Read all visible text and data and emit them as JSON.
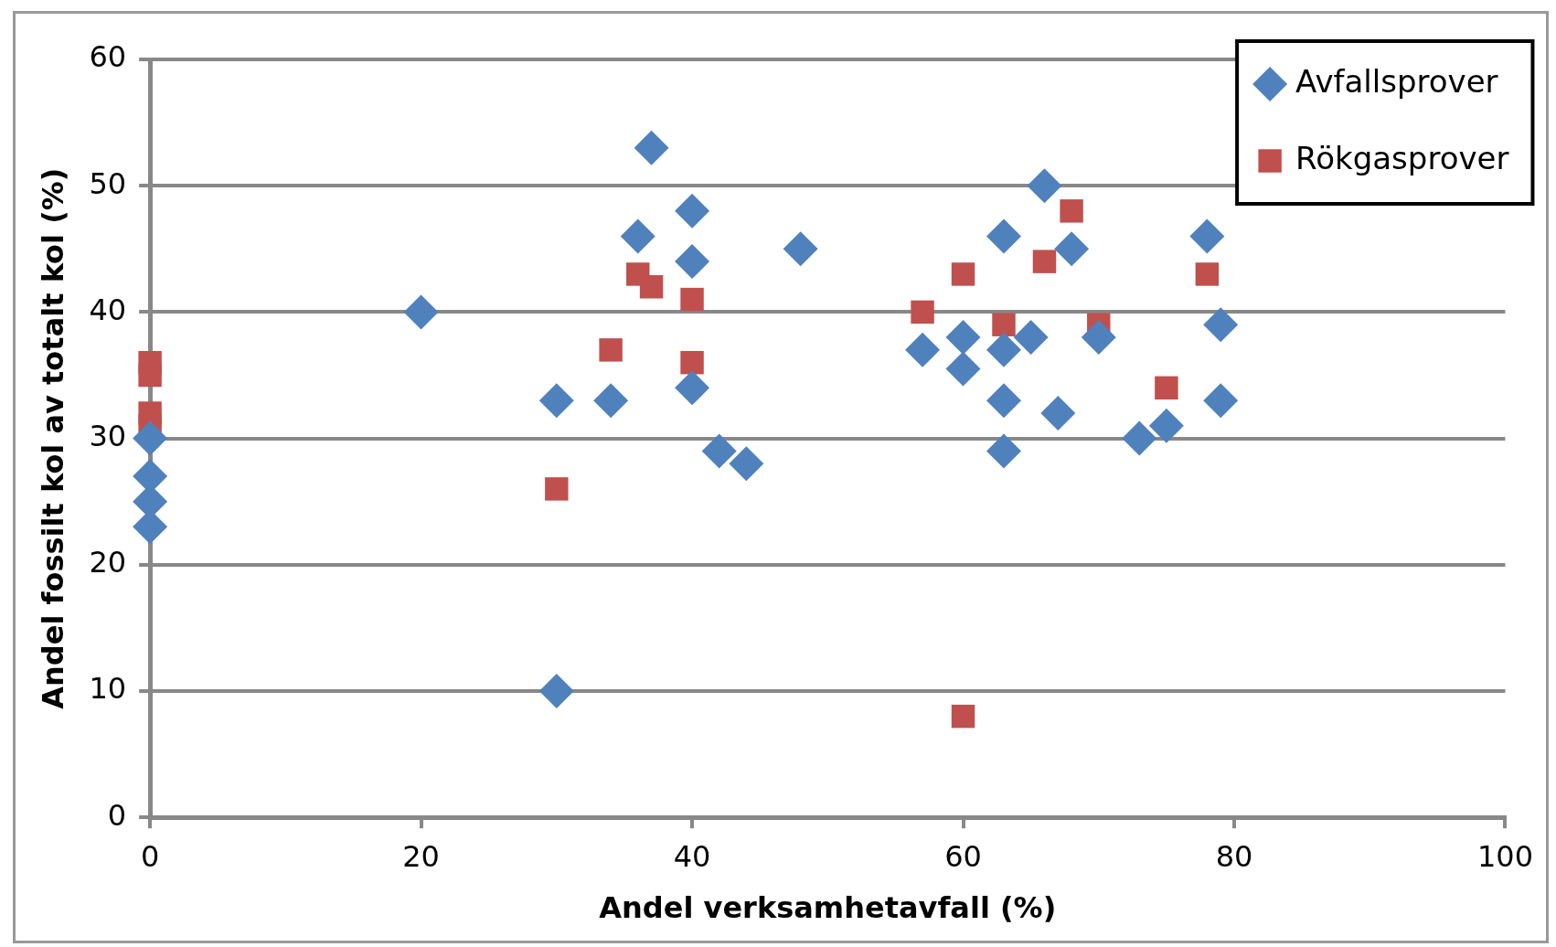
{
  "chart_data": {
    "type": "scatter",
    "xlabel": "Andel verksamhetavfall (%)",
    "ylabel": "Andel fossilt kol av totalt kol (%)",
    "xlim": [
      0,
      100
    ],
    "xticks": [
      0,
      20,
      40,
      60,
      80,
      100
    ],
    "ylim": [
      0,
      60
    ],
    "yticks": [
      0,
      10,
      20,
      30,
      40,
      50,
      60
    ],
    "grid": "y",
    "legend": "top right",
    "series": [
      {
        "name": "Avfallsprover",
        "color": "#4f81bd",
        "marker": "diamond",
        "x": [
          0,
          0,
          0,
          0,
          20,
          30,
          30,
          34,
          36,
          37,
          40,
          40,
          40,
          42,
          44,
          48,
          57,
          60,
          60,
          63,
          63,
          63,
          63,
          65,
          66,
          67,
          68,
          70,
          73,
          75,
          78,
          79,
          79
        ],
        "values": [
          23,
          25,
          27,
          30,
          40,
          33,
          10,
          33,
          46,
          53,
          48,
          44,
          34,
          29,
          28,
          45,
          37,
          38,
          35.5,
          46,
          37,
          33,
          29,
          38,
          50,
          32,
          45,
          38,
          30,
          31,
          46,
          39,
          33
        ]
      },
      {
        "name": "Rökgasprover",
        "color": "#c0504d",
        "marker": "square",
        "x": [
          0,
          0,
          0,
          0,
          30,
          34,
          36,
          37,
          40,
          40,
          57,
          60,
          60,
          63,
          66,
          68,
          70,
          75,
          78
        ],
        "values": [
          36,
          35,
          32,
          31,
          26,
          37,
          43,
          42,
          41,
          36,
          40,
          43,
          8,
          39,
          44,
          48,
          39,
          34,
          43
        ]
      }
    ]
  }
}
